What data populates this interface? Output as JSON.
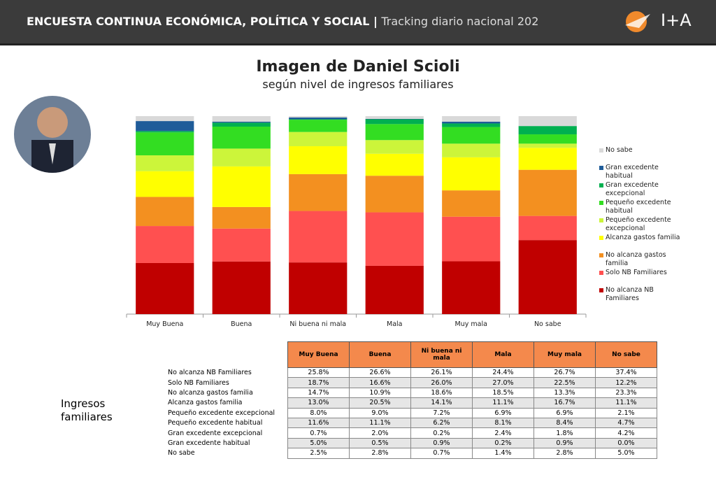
{
  "header": {
    "title": "ENCUESTA CONTINUA ECONÓMICA, POLÍTICA Y SOCIAL |",
    "subtitle": "Tracking diario nacional 202",
    "logo": "I+A"
  },
  "side_label": "Ingresos familiares",
  "chart_data": {
    "type": "bar",
    "stacked": true,
    "title": "Imagen de Daniel Scioli",
    "subtitle": "según nivel de ingresos familiares",
    "categories": [
      "Muy Buena",
      "Buena",
      "Ni buena ni mala",
      "Mala",
      "Muy mala",
      "No sabe"
    ],
    "ylim": [
      0,
      100
    ],
    "series": [
      {
        "name": "No alcanza NB Familiares",
        "color": "#c00000",
        "values": [
          25.8,
          26.6,
          26.1,
          24.4,
          26.7,
          37.4
        ],
        "value_labels": [
          "25.8%",
          "26.6%",
          "26.1%",
          "24.4%",
          "26.7%",
          "37.4%"
        ]
      },
      {
        "name": "Solo NB Familiares",
        "color": "#ff5050",
        "values": [
          18.7,
          16.6,
          26.0,
          27.0,
          22.5,
          12.2
        ],
        "value_labels": [
          "18.7%",
          "16.6%",
          "26.0%",
          "27.0%",
          "22.5%",
          "12.2%"
        ]
      },
      {
        "name": "No alcanza gastos familia",
        "color": "#f39020",
        "values": [
          14.7,
          10.9,
          18.6,
          18.5,
          13.3,
          23.3
        ],
        "value_labels": [
          "14.7%",
          "10.9%",
          "18.6%",
          "18.5%",
          "13.3%",
          "23.3%"
        ]
      },
      {
        "name": "Alcanza gastos familia",
        "color": "#ffff00",
        "values": [
          13.0,
          20.5,
          14.1,
          11.1,
          16.7,
          11.1
        ],
        "value_labels": [
          "13.0%",
          "20.5%",
          "14.1%",
          "11.1%",
          "16.7%",
          "11.1%"
        ]
      },
      {
        "name": "Pequeño excedente excepcional",
        "color": "#ccf53a",
        "values": [
          8.0,
          9.0,
          7.2,
          6.9,
          6.9,
          2.1
        ],
        "value_labels": [
          "8.0%",
          "9.0%",
          "7.2%",
          "6.9%",
          "6.9%",
          "2.1%"
        ]
      },
      {
        "name": "Pequeño excedente habitual",
        "color": "#33dd22",
        "values": [
          11.6,
          11.1,
          6.2,
          8.1,
          8.4,
          4.7
        ],
        "value_labels": [
          "11.6%",
          "11.1%",
          "6.2%",
          "8.1%",
          "8.4%",
          "4.7%"
        ]
      },
      {
        "name": "Gran excedente excepcional",
        "color": "#00b050",
        "values": [
          0.7,
          2.0,
          0.2,
          2.4,
          1.8,
          4.2
        ],
        "value_labels": [
          "0.7%",
          "2.0%",
          "0.2%",
          "2.4%",
          "1.8%",
          "4.2%"
        ]
      },
      {
        "name": "Gran excedente habitual",
        "color": "#1f5c99",
        "values": [
          5.0,
          0.5,
          0.9,
          0.2,
          0.9,
          0.0
        ],
        "value_labels": [
          "5.0%",
          "0.5%",
          "0.9%",
          "0.2%",
          "0.9%",
          "0.0%"
        ]
      },
      {
        "name": "No sabe",
        "color": "#d9d9d9",
        "values": [
          2.5,
          2.8,
          0.7,
          1.4,
          2.8,
          5.0
        ],
        "value_labels": [
          "2.5%",
          "2.8%",
          "0.7%",
          "1.4%",
          "2.8%",
          "5.0%"
        ]
      }
    ]
  }
}
